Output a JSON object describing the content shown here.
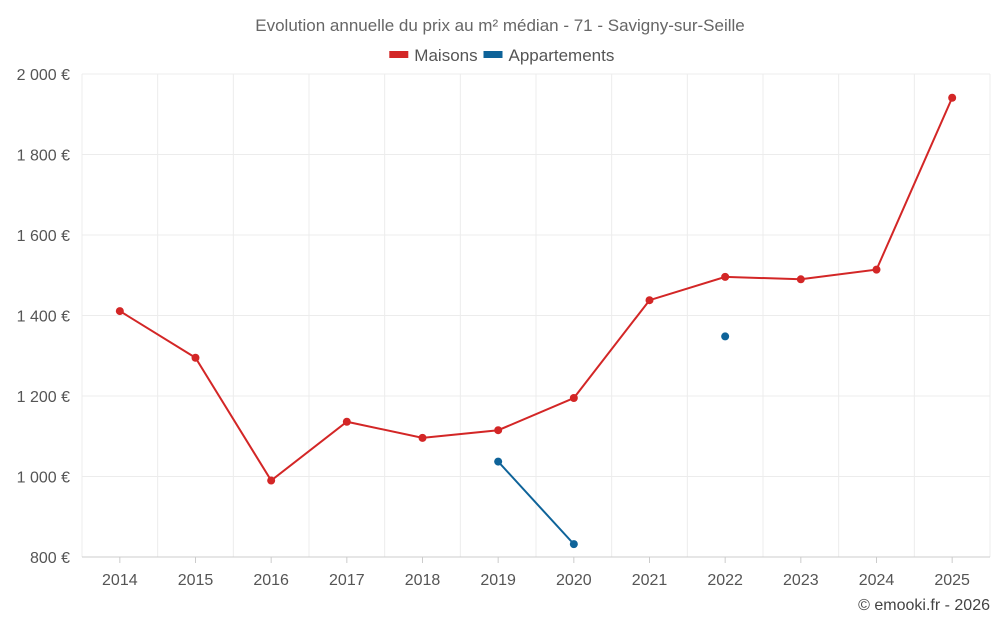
{
  "chart_data": {
    "type": "line",
    "title": "Evolution annuelle du prix au m² médian - 71 - Savigny-sur-Seille",
    "categories": [
      "2014",
      "2015",
      "2016",
      "2017",
      "2018",
      "2019",
      "2020",
      "2021",
      "2022",
      "2023",
      "2024",
      "2025"
    ],
    "y_ticks": [
      "800 €",
      "1 000 €",
      "1 200 €",
      "1 400 €",
      "1 600 €",
      "1 800 €",
      "2 000 €"
    ],
    "ylim": [
      800,
      2000
    ],
    "y_tick_step": 200,
    "grid": true,
    "legend_position": "top-center",
    "series": [
      {
        "name": "Maisons",
        "color": "#d32626",
        "values": [
          1411,
          1295,
          990,
          1136,
          1096,
          1115,
          1195,
          1438,
          1496,
          1490,
          1514,
          1941
        ]
      },
      {
        "name": "Appartements",
        "color": "#0e6399",
        "values": [
          null,
          null,
          null,
          null,
          null,
          1037,
          832,
          null,
          1348,
          null,
          null,
          null
        ]
      }
    ]
  },
  "credit": "© emooki.fr - 2026"
}
